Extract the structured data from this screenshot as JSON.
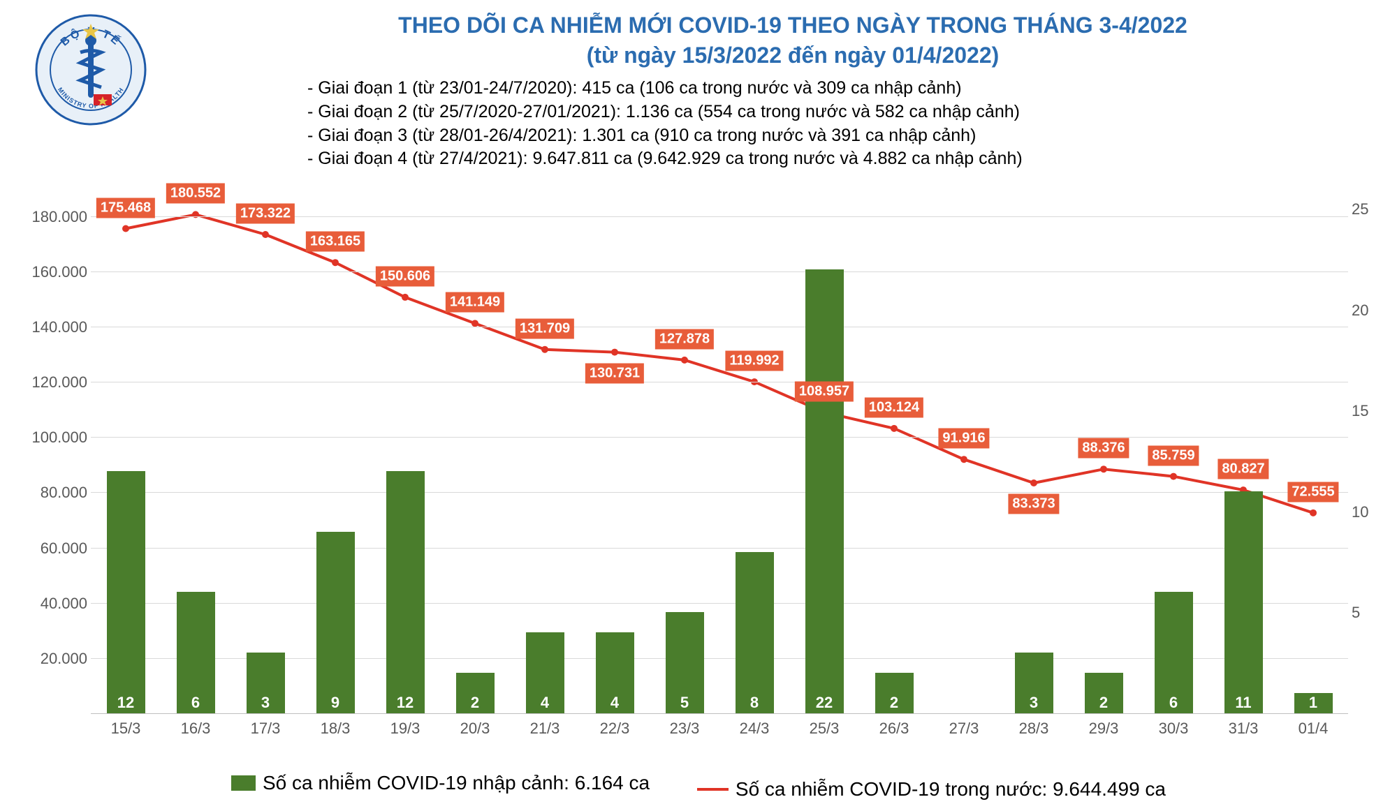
{
  "title": {
    "line1": "THEO DÕI CA NHIỄM MỚI COVID-19 THEO NGÀY TRONG THÁNG 3-4/2022",
    "line2": "(từ ngày 15/3/2022 đến ngày 01/4/2022)",
    "color": "#2b6cb0"
  },
  "logo": {
    "outer_text_top": "BỘ Y TẾ",
    "outer_text_bottom": "MINISTRY OF HEALTH",
    "ring_color": "#1e5aa8",
    "bg_color": "#e8f0f8",
    "star_color": "#e8c547",
    "flag_red": "#d6222a"
  },
  "notes": {
    "lines": [
      "- Giai đoạn 1 (từ 23/01-24/7/2020): 415 ca (106 ca trong nước và 309 ca nhập cảnh)",
      "- Giai đoạn 2 (từ 25/7/2020-27/01/2021): 1.136 ca (554 ca trong nước và 582 ca nhập cảnh)",
      "- Giai đoạn 3 (từ 28/01-26/4/2021): 1.301 ca (910 ca trong nước và 391 ca nhập cảnh)",
      "- Giai đoạn 4 (từ 27/4/2021): 9.647.811 ca (9.642.929 ca trong nước và 4.882 ca nhập cảnh)"
    ],
    "color": "#000000"
  },
  "chart": {
    "type": "bar+line",
    "categories": [
      "15/3",
      "16/3",
      "17/3",
      "18/3",
      "19/3",
      "20/3",
      "21/3",
      "22/3",
      "23/3",
      "24/3",
      "25/3",
      "26/3",
      "27/3",
      "28/3",
      "29/3",
      "30/3",
      "31/3",
      "01/4"
    ],
    "line_values": [
      175468,
      180552,
      173322,
      163165,
      150606,
      141149,
      131709,
      130731,
      127878,
      119992,
      108957,
      103124,
      91916,
      83373,
      88376,
      85759,
      80827,
      72555
    ],
    "line_labels": [
      "175.468",
      "180.552",
      "173.322",
      "163.165",
      "150.606",
      "141.149",
      "131.709",
      "130.731",
      "127.878",
      "119.992",
      "108.957",
      "103.124",
      "91.916",
      "83.373",
      "88.376",
      "85.759",
      "80.827",
      "72.555"
    ],
    "line_label_offsets_y": [
      -30,
      -30,
      -30,
      -30,
      -30,
      -30,
      -30,
      30,
      -30,
      -30,
      -30,
      -30,
      -30,
      30,
      -30,
      -30,
      -30,
      -30
    ],
    "bar_values_secondary": [
      12,
      6,
      3,
      9,
      12,
      2,
      4,
      4,
      5,
      8,
      22,
      2,
      0,
      3,
      2,
      6,
      11,
      1
    ],
    "bar_labels": [
      "12",
      "6",
      "3",
      "9",
      "12",
      "2",
      "4",
      "4",
      "5",
      "8",
      "22",
      "2",
      "-",
      "3",
      "2",
      "6",
      "11",
      "1"
    ],
    "y_left_max": 190000,
    "y_left_ticks": [
      0,
      20000,
      40000,
      60000,
      80000,
      100000,
      120000,
      140000,
      160000,
      180000
    ],
    "y_left_tick_labels": [
      "",
      "20.000",
      "40.000",
      "60.000",
      "80.000",
      "100.000",
      "120.000",
      "140.000",
      "160.000",
      "180.000"
    ],
    "y_right_max": 26,
    "y_right_ticks": [
      5,
      10,
      15,
      20,
      25
    ],
    "y_right_tick_labels": [
      "5",
      "10",
      "15",
      "20",
      "25"
    ],
    "bar_color": "#4a7d2c",
    "line_color": "#e03426",
    "line_label_bg": "#e85d3a",
    "grid_color": "#d9d9d9",
    "axis_color": "#bfbfbf",
    "text_color": "#595959",
    "bar_width_ratio": 0.55
  },
  "legend": {
    "bar_text": "Số ca nhiễm COVID-19 nhập cảnh: 6.164 ca",
    "line_text": "Số ca nhiễm COVID-19 trong nước: 9.644.499 ca"
  }
}
